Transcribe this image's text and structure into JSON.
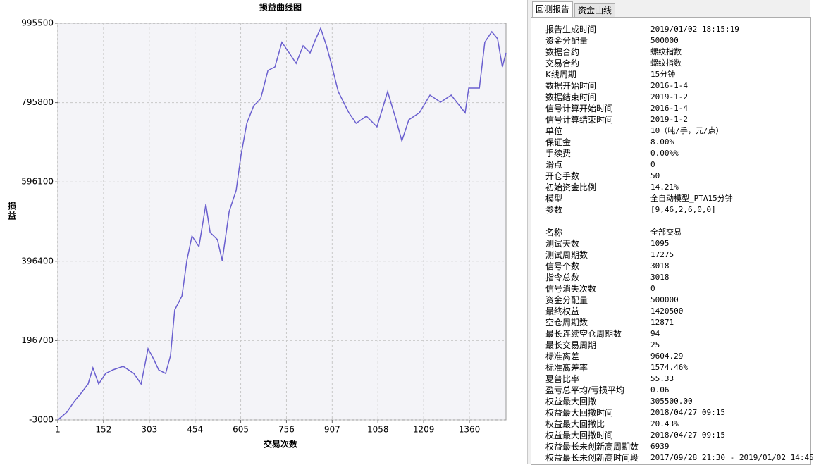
{
  "chart_data": {
    "type": "line",
    "title": "损益曲线图",
    "y_label": "损益",
    "x_label": "交易次数",
    "x": [
      1,
      31,
      55,
      78,
      101,
      117,
      136,
      159,
      183,
      217,
      252,
      276,
      299,
      318,
      334,
      357,
      373,
      387,
      411,
      427,
      444,
      467,
      490,
      504,
      528,
      544,
      567,
      590,
      606,
      625,
      648,
      671,
      695,
      718,
      741,
      765,
      788,
      811,
      834,
      853,
      869,
      888,
      904,
      927,
      962,
      986,
      1020,
      1055,
      1090,
      1118,
      1137,
      1160,
      1195,
      1230,
      1265,
      1300,
      1346,
      1358,
      1393,
      1411,
      1434,
      1453,
      1469,
      1481
    ],
    "values": [
      -3000,
      16500,
      43000,
      64400,
      87400,
      128000,
      87400,
      113900,
      122900,
      131700,
      113900,
      87400,
      176100,
      149500,
      122900,
      113900,
      158400,
      273700,
      309100,
      397800,
      459900,
      433300,
      539700,
      468800,
      451000,
      397800,
      521800,
      575000,
      663800,
      743700,
      788000,
      805700,
      876700,
      885500,
      947600,
      921000,
      894400,
      938800,
      921000,
      956500,
      983100,
      938800,
      894400,
      823500,
      770300,
      743700,
      761500,
      734800,
      823500,
      752600,
      699300,
      752600,
      770300,
      814600,
      796900,
      814600,
      770300,
      832400,
      832400,
      947600,
      974200,
      956500,
      885500,
      921000
    ],
    "color": "#6a5fcf",
    "xlim": [
      1,
      1481
    ],
    "xticks": [
      1,
      152,
      303,
      454,
      605,
      756,
      907,
      1058,
      1209,
      1360
    ],
    "ylim": [
      -3000,
      995500
    ],
    "yticks": [
      -3000,
      196700,
      396400,
      596100,
      795800,
      995500
    ],
    "grid": true
  },
  "tabs": [
    "回测报告",
    "资金曲线"
  ],
  "report": {
    "sections": [
      [
        [
          "报告生成时间",
          "2019/01/02 18:15:19"
        ],
        [
          "资金分配量",
          "500000"
        ],
        [
          "数据合约",
          "螺纹指数"
        ],
        [
          "交易合约",
          "螺纹指数"
        ],
        [
          "K线周期",
          "15分钟"
        ],
        [
          "数据开始时间",
          "2016-1-4"
        ],
        [
          "数据结束时间",
          "2019-1-2"
        ],
        [
          "信号计算开始时间",
          "2016-1-4"
        ],
        [
          "信号计算结束时间",
          "2019-1-2"
        ],
        [
          "单位",
          "10（吨/手，元/点）"
        ],
        [
          "保证金",
          "8.00%"
        ],
        [
          "手续费",
          "0.00%%"
        ],
        [
          "滑点",
          "0"
        ],
        [
          "开仓手数",
          "50"
        ],
        [
          "初始资金比例",
          "14.21%"
        ],
        [
          "模型",
          "全自动模型_PTA15分钟"
        ],
        [
          "参数",
          "[9,46,2,6,0,0]"
        ]
      ],
      [
        [
          "名称",
          "全部交易"
        ],
        [
          "测试天数",
          "1095"
        ],
        [
          "测试周期数",
          "17275"
        ],
        [
          "信号个数",
          "3018"
        ],
        [
          "指令总数",
          "3018"
        ],
        [
          "信号消失次数",
          "0"
        ],
        [
          "资金分配量",
          "500000"
        ],
        [
          "最终权益",
          "1420500"
        ],
        [
          "空仓周期数",
          "12871"
        ],
        [
          "最长连续空仓周期数",
          "94"
        ],
        [
          "最长交易周期",
          "25"
        ],
        [
          "标准离差",
          "9604.29"
        ],
        [
          "标准离差率",
          "1574.46%"
        ],
        [
          "夏普比率",
          "55.33"
        ],
        [
          "盈亏总平均/亏损平均",
          "0.06"
        ],
        [
          "权益最大回撤",
          "305500.00"
        ],
        [
          "权益最大回撤时间",
          "2018/04/27 09:15"
        ],
        [
          "权益最大回撤比",
          "20.43%"
        ],
        [
          "权益最大回撤时间",
          "2018/04/27 09:15"
        ],
        [
          "权益最长未创新高周期数",
          "6939"
        ],
        [
          "权益最长未创新高时间段",
          "2017/09/28 21:30 - 2019/01/02 14:45"
        ]
      ]
    ]
  }
}
